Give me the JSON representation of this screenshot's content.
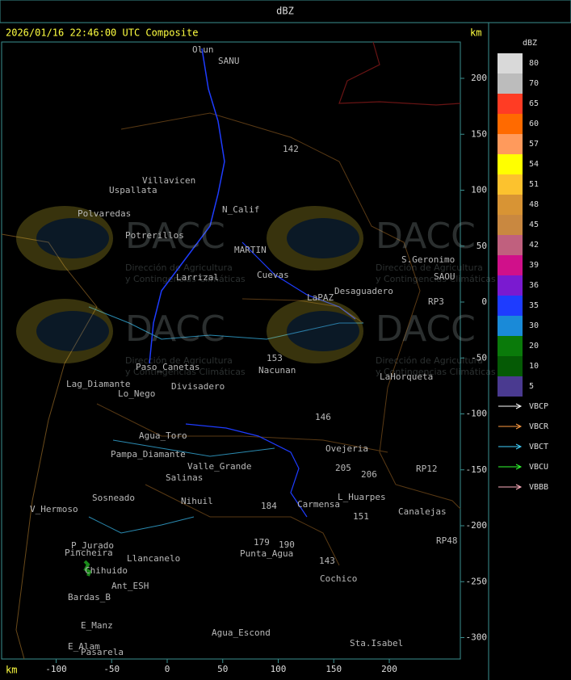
{
  "header": {
    "title": "dBZ"
  },
  "map": {
    "timestamp": "2026/01/16 22:46:00 UTC Composite",
    "unit_top": "km",
    "unit_bottom": "km",
    "xticks": [
      -100,
      -50,
      0,
      50,
      100,
      150,
      200
    ],
    "yticks": [
      200,
      150,
      100,
      50,
      0,
      -50,
      -100,
      -150,
      -200,
      -250,
      -300
    ],
    "watermark": {
      "name": "DACC",
      "line1": "Dirección de Agricultura",
      "line2": "y Contingencias Climáticas"
    },
    "places": [
      "Olun",
      "SANU",
      "Villavicen",
      "Uspallata",
      "Polvaredas",
      "N_Calif",
      "Potrerillos",
      "MARTIN",
      "Larrizal",
      "Cuevas",
      "LaPAZ",
      "Desaguadero",
      "S.Geronimo",
      "SAOU",
      "Nacunan",
      "LaHorqueta",
      "Paso_Canetas",
      "Lag_Diamante",
      "Lo_Nego",
      "Divisadero",
      "Agua_Toro",
      "Pampa_Diamante",
      "Valle_Grande",
      "Ovejeria",
      "Salinas",
      "Carmensa",
      "L_Huarpes",
      "Canalejas",
      "Sosneado",
      "V_Hermoso",
      "Nihuil",
      "Punta_Agua",
      "P_Jurado",
      "Pincheira",
      "Llancanelo",
      "Chihuido",
      "Ant_ESH",
      "Bardas_B",
      "Cochico",
      "E_Manz",
      "E_Alam",
      "Pasarela",
      "Agua_Escond",
      "Sta.Isabel",
      "142",
      "153",
      "146",
      "184",
      "179",
      "190",
      "143",
      "151",
      "205",
      "206",
      "RP3",
      "RP12",
      "RP48"
    ]
  },
  "legend": {
    "title": "dBZ",
    "levels": [
      {
        "value": 80,
        "color": "#d9d9d9"
      },
      {
        "value": 70,
        "color": "#bcbcbc"
      },
      {
        "value": 65,
        "color": "#ff3c24"
      },
      {
        "value": 60,
        "color": "#ff6a00"
      },
      {
        "value": 57,
        "color": "#ff9a5c"
      },
      {
        "value": 54,
        "color": "#ffff00"
      },
      {
        "value": 51,
        "color": "#fcc22e"
      },
      {
        "value": 48,
        "color": "#d89434"
      },
      {
        "value": 45,
        "color": "#c98840"
      },
      {
        "value": 42,
        "color": "#c0607e"
      },
      {
        "value": 39,
        "color": "#d0108a"
      },
      {
        "value": 36,
        "color": "#7a1ad0"
      },
      {
        "value": 35,
        "color": "#1e3cff"
      },
      {
        "value": 30,
        "color": "#1a8ad8"
      },
      {
        "value": 20,
        "color": "#0a7a0a"
      },
      {
        "value": 10,
        "color": "#055a05"
      },
      {
        "value": 5,
        "color": "#4a3a90"
      }
    ],
    "lines": [
      {
        "label": "VBCP",
        "color": "#ffffff"
      },
      {
        "label": "VBCR",
        "color": "#ff9a40"
      },
      {
        "label": "VBCT",
        "color": "#40d0ff"
      },
      {
        "label": "VBCU",
        "color": "#30ff30"
      },
      {
        "label": "VBBB",
        "color": "#ffb0c0"
      }
    ]
  }
}
